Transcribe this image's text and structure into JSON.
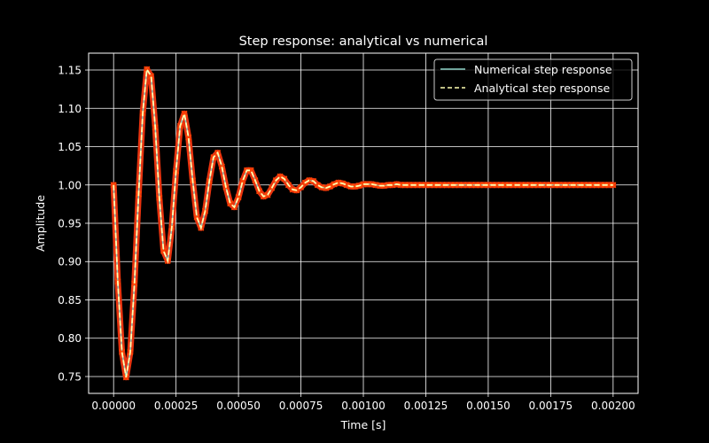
{
  "chart_data": {
    "type": "line",
    "title": "Step response: analytical vs numerical",
    "xlabel": "Time [s]",
    "ylabel": "Amplitude",
    "xlim": [
      -0.0001,
      0.0021
    ],
    "ylim": [
      0.728,
      1.172
    ],
    "xticks": [
      0.0,
      0.00025,
      0.0005,
      0.00075,
      0.001,
      0.00125,
      0.0015,
      0.00175,
      0.002
    ],
    "xtick_labels": [
      "0.00000",
      "0.00025",
      "0.00050",
      "0.00075",
      "0.00100",
      "0.00125",
      "0.00150",
      "0.00175",
      "0.00200"
    ],
    "yticks": [
      0.75,
      0.8,
      0.85,
      0.9,
      0.95,
      1.0,
      1.05,
      1.1,
      1.15
    ],
    "ytick_labels": [
      "0.75",
      "0.80",
      "0.85",
      "0.90",
      "0.95",
      "1.00",
      "1.05",
      "1.10",
      "1.15"
    ],
    "grid": true,
    "legend_position": "top-right",
    "background": "#000000",
    "colors": {
      "axes": "#ffffff",
      "grid": "#ffffff",
      "numerical": "#8dd3c7",
      "analytical": "#ffffb3",
      "overlay_line": "#e8330f",
      "overlay_marker": "#ff4500"
    },
    "series": [
      {
        "name": "Numerical step response",
        "style": "solid",
        "x": [
          0.0,
          1.67e-05,
          3.33e-05,
          5e-05,
          6.67e-05,
          8.33e-05,
          0.0001,
          0.0001167,
          0.0001333,
          0.00015,
          0.0001667,
          0.0001833,
          0.0002,
          0.0002167,
          0.0002333,
          0.00025,
          0.0002667,
          0.0002833,
          0.0003,
          0.0003167,
          0.0003333,
          0.00035,
          0.0003667,
          0.0003833,
          0.0004,
          0.0004167,
          0.0004333,
          0.00045,
          0.0004667,
          0.0004833,
          0.0005,
          0.0005167,
          0.0005333,
          0.00055,
          0.0005667,
          0.0005833,
          0.0006,
          0.0006167,
          0.0006333,
          0.00065,
          0.0006667,
          0.0006833,
          0.0007,
          0.0007167,
          0.0007333,
          0.00075,
          0.0007667,
          0.0007833,
          0.0008,
          0.0008167,
          0.0008333,
          0.00085,
          0.0008667,
          0.0008833,
          0.0009,
          0.0009167,
          0.0009333,
          0.00095,
          0.0009667,
          0.0009833,
          0.001,
          0.0010167,
          0.0010333,
          0.00105,
          0.0010667,
          0.0010833,
          0.0011,
          0.0011167,
          0.0011333,
          0.00115,
          0.0011667,
          0.0011833,
          0.0012,
          0.0012167,
          0.0012333,
          0.00125,
          0.0012667,
          0.0012833,
          0.0013,
          0.0013167,
          0.0013333,
          0.00135,
          0.0013667,
          0.0013833,
          0.0014,
          0.0014167,
          0.0014333,
          0.00145,
          0.0014667,
          0.0014833,
          0.0015,
          0.0015167,
          0.0015333,
          0.00155,
          0.0015667,
          0.0015833,
          0.0016,
          0.0016167,
          0.0016333,
          0.00165,
          0.0016667,
          0.0016833,
          0.0017,
          0.0017167,
          0.0017333,
          0.00175,
          0.0017667,
          0.0017833,
          0.0018,
          0.0018167,
          0.0018333,
          0.00185,
          0.0018667,
          0.0018833,
          0.0019,
          0.0019167,
          0.0019333,
          0.00195,
          0.0019667,
          0.0019833,
          0.002
        ],
        "y": [
          1.0,
          0.874,
          0.782,
          0.749,
          0.782,
          0.871,
          0.988,
          1.094,
          1.151,
          1.142,
          1.075,
          0.983,
          0.914,
          0.901,
          0.945,
          1.018,
          1.077,
          1.093,
          1.062,
          1.006,
          0.958,
          0.944,
          0.966,
          1.005,
          1.036,
          1.042,
          1.024,
          0.997,
          0.976,
          0.971,
          0.984,
          1.005,
          1.019,
          1.019,
          1.006,
          0.992,
          0.985,
          0.987,
          0.996,
          1.006,
          1.011,
          1.008,
          1.0,
          0.994,
          0.993,
          0.997,
          1.003,
          1.006,
          1.005,
          1.0,
          0.997,
          0.996,
          0.998,
          1.001,
          1.003,
          1.002,
          1.0,
          0.998,
          0.998,
          0.999,
          1.001,
          1.001,
          1.001,
          1.0,
          0.999,
          0.999,
          1.0,
          1.0,
          1.001,
          1.0,
          1.0,
          1.0,
          1.0,
          1.0,
          1.0,
          1.0,
          1.0,
          1.0,
          1.0,
          1.0,
          1.0,
          1.0,
          1.0,
          1.0,
          1.0,
          1.0,
          1.0,
          1.0,
          1.0,
          1.0,
          1.0,
          1.0,
          1.0,
          1.0,
          1.0,
          1.0,
          1.0,
          1.0,
          1.0,
          1.0,
          1.0,
          1.0,
          1.0,
          1.0,
          1.0,
          1.0,
          1.0,
          1.0,
          1.0,
          1.0,
          1.0,
          1.0,
          1.0,
          1.0,
          1.0,
          1.0,
          1.0,
          1.0,
          1.0,
          1.0,
          1.0
        ]
      },
      {
        "name": "Analytical step response",
        "style": "dashed",
        "x": [
          0.0,
          1.67e-05,
          3.33e-05,
          5e-05,
          6.67e-05,
          8.33e-05,
          0.0001,
          0.0001167,
          0.0001333,
          0.00015,
          0.0001667,
          0.0001833,
          0.0002,
          0.0002167,
          0.0002333,
          0.00025,
          0.0002667,
          0.0002833,
          0.0003,
          0.0003167,
          0.0003333,
          0.00035,
          0.0003667,
          0.0003833,
          0.0004,
          0.0004167,
          0.0004333,
          0.00045,
          0.0004667,
          0.0004833,
          0.0005,
          0.0005167,
          0.0005333,
          0.00055,
          0.0005667,
          0.0005833,
          0.0006,
          0.0006167,
          0.0006333,
          0.00065,
          0.0006667,
          0.0006833,
          0.0007,
          0.0007167,
          0.0007333,
          0.00075,
          0.0007667,
          0.0007833,
          0.0008,
          0.0008167,
          0.0008333,
          0.00085,
          0.0008667,
          0.0008833,
          0.0009,
          0.0009167,
          0.0009333,
          0.00095,
          0.0009667,
          0.0009833,
          0.001,
          0.0010167,
          0.0010333,
          0.00105,
          0.0010667,
          0.0010833,
          0.0011,
          0.0011167,
          0.0011333,
          0.00115,
          0.0011667,
          0.0011833,
          0.0012,
          0.0012167,
          0.0012333,
          0.00125,
          0.0012667,
          0.0012833,
          0.0013,
          0.0013167,
          0.0013333,
          0.00135,
          0.0013667,
          0.0013833,
          0.0014,
          0.0014167,
          0.0014333,
          0.00145,
          0.0014667,
          0.0014833,
          0.0015,
          0.0015167,
          0.0015333,
          0.00155,
          0.0015667,
          0.0015833,
          0.0016,
          0.0016167,
          0.0016333,
          0.00165,
          0.0016667,
          0.0016833,
          0.0017,
          0.0017167,
          0.0017333,
          0.00175,
          0.0017667,
          0.0017833,
          0.0018,
          0.0018167,
          0.0018333,
          0.00185,
          0.0018667,
          0.0018833,
          0.0019,
          0.0019167,
          0.0019333,
          0.00195,
          0.0019667,
          0.0019833,
          0.002
        ],
        "y": [
          1.0,
          0.874,
          0.782,
          0.749,
          0.782,
          0.871,
          0.988,
          1.094,
          1.151,
          1.142,
          1.075,
          0.983,
          0.914,
          0.901,
          0.945,
          1.018,
          1.077,
          1.093,
          1.062,
          1.006,
          0.958,
          0.944,
          0.966,
          1.005,
          1.036,
          1.042,
          1.024,
          0.997,
          0.976,
          0.971,
          0.984,
          1.005,
          1.019,
          1.019,
          1.006,
          0.992,
          0.985,
          0.987,
          0.996,
          1.006,
          1.011,
          1.008,
          1.0,
          0.994,
          0.993,
          0.997,
          1.003,
          1.006,
          1.005,
          1.0,
          0.997,
          0.996,
          0.998,
          1.001,
          1.003,
          1.002,
          1.0,
          0.998,
          0.998,
          0.999,
          1.001,
          1.001,
          1.001,
          1.0,
          0.999,
          0.999,
          1.0,
          1.0,
          1.001,
          1.0,
          1.0,
          1.0,
          1.0,
          1.0,
          1.0,
          1.0,
          1.0,
          1.0,
          1.0,
          1.0,
          1.0,
          1.0,
          1.0,
          1.0,
          1.0,
          1.0,
          1.0,
          1.0,
          1.0,
          1.0,
          1.0,
          1.0,
          1.0,
          1.0,
          1.0,
          1.0,
          1.0,
          1.0,
          1.0,
          1.0,
          1.0,
          1.0,
          1.0,
          1.0,
          1.0,
          1.0,
          1.0,
          1.0,
          1.0,
          1.0,
          1.0,
          1.0,
          1.0,
          1.0,
          1.0,
          1.0,
          1.0,
          1.0,
          1.0,
          1.0,
          1.0
        ]
      }
    ]
  }
}
